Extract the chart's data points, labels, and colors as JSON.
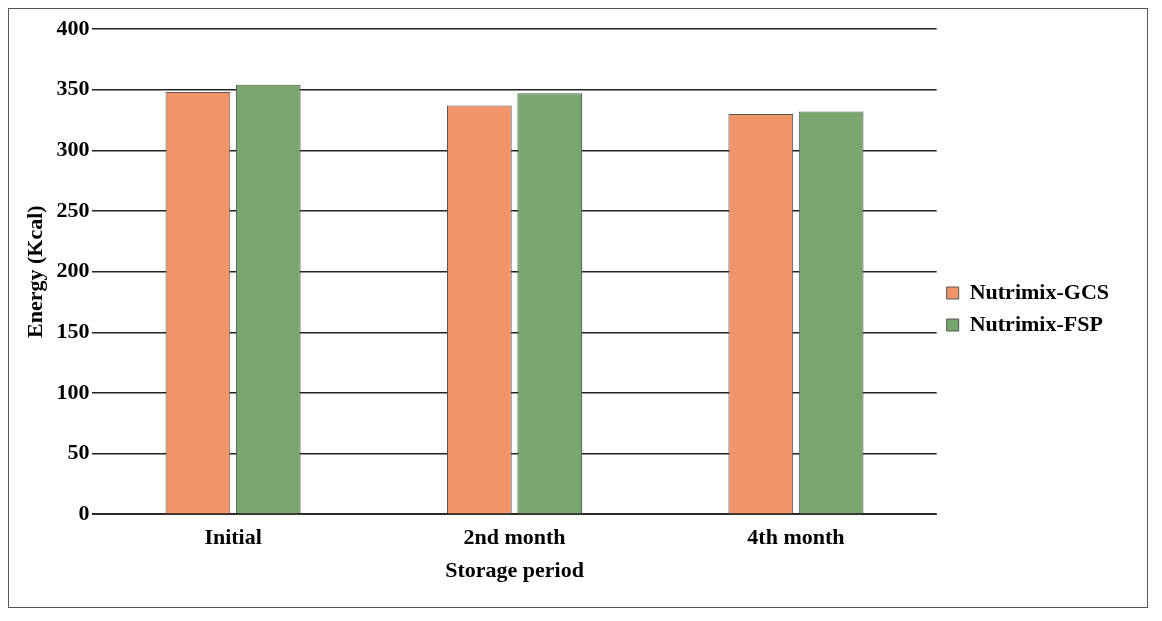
{
  "chart_data": {
    "type": "bar",
    "xlabel": "Storage period",
    "ylabel": "Energy (Kcal)",
    "categories": [
      "Initial",
      "2nd month",
      "4th month"
    ],
    "series": [
      {
        "name": "Nutrimix-GCS",
        "color": "#f0946a",
        "values": [
          348,
          337,
          330
        ]
      },
      {
        "name": "Nutrimix-FSP",
        "color": "#78a66e",
        "values": [
          354,
          347,
          332
        ]
      }
    ],
    "ylim": [
      0,
      400
    ],
    "yticks": [
      0,
      50,
      100,
      150,
      200,
      250,
      300,
      350,
      400
    ],
    "grid": "y",
    "legend": "right"
  }
}
